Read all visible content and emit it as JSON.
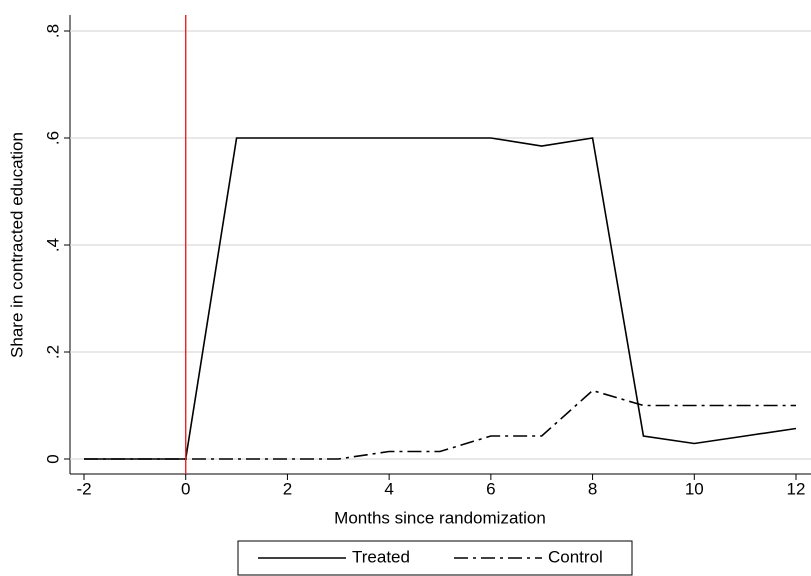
{
  "chart_data": {
    "type": "line",
    "x_label": "Months since randomization",
    "y_label": "Share in contracted education",
    "x": [
      -2,
      -1,
      0,
      1,
      2,
      3,
      4,
      5,
      6,
      7,
      8,
      9,
      10,
      11,
      12
    ],
    "series": [
      {
        "name": "Treated",
        "color": "#000000",
        "dash": "solid",
        "values": [
          0,
          0,
          0,
          0.6,
          0.6,
          0.6,
          0.6,
          0.6,
          0.6,
          0.585,
          0.6,
          0.043,
          0.029,
          0.043,
          0.057
        ]
      },
      {
        "name": "Control",
        "color": "#000000",
        "dash": "dash-dot",
        "values": [
          0,
          0,
          0,
          0,
          0,
          0,
          0.014,
          0.014,
          0.043,
          0.043,
          0.128,
          0.1,
          0.1,
          0.1,
          0.1
        ]
      }
    ],
    "xlim": [
      -2,
      12
    ],
    "xticks": [
      -2,
      0,
      2,
      4,
      6,
      8,
      10,
      12
    ],
    "ylim": [
      0,
      0.8
    ],
    "yticks": [
      0,
      {
        "value": 0.2,
        "label": ".2"
      },
      {
        "value": 0.4,
        "label": ".4"
      },
      {
        "value": 0.6,
        "label": ".6"
      },
      {
        "value": 0.8,
        "label": ".8"
      }
    ],
    "grid": true,
    "vline": {
      "x": 0,
      "color": "#e8251f"
    },
    "legend": "bottom"
  }
}
